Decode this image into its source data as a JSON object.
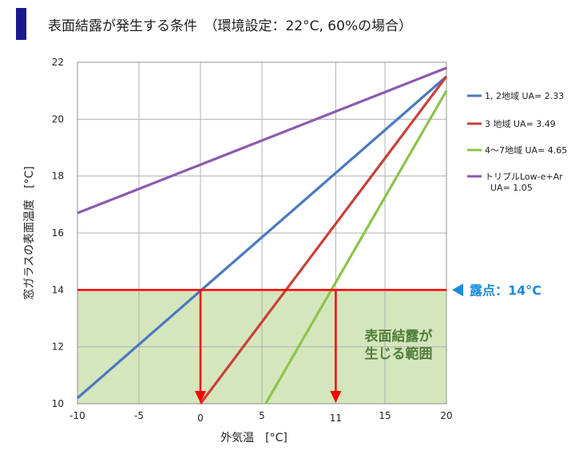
{
  "title": "表面結露が発生する条件　（環境設定：22°C, 60%の場合）",
  "chart_data": {
    "type": "line",
    "xlabel": "外気温　[°C]",
    "ylabel": "窓ガラスの表面温度　[°C]",
    "xlim": [
      -10,
      20
    ],
    "ylim": [
      10,
      22
    ],
    "x_ticks": [
      "-10",
      "-5",
      "0",
      "5",
      "11",
      "15",
      "20"
    ],
    "x_tick_values": [
      -10,
      -5,
      0,
      5,
      11,
      15,
      20
    ],
    "highlight_ticks": [
      "0",
      "11"
    ],
    "y_ticks": [
      "10",
      "12",
      "14",
      "16",
      "18",
      "20",
      "22"
    ],
    "y_tick_values": [
      10,
      12,
      14,
      16,
      18,
      20,
      22
    ],
    "grid": true,
    "legend_position": "right",
    "series": [
      {
        "name": "1, 2地域 UA= 2.33",
        "color": "#4a78c0",
        "x": [
          -10,
          20
        ],
        "y": [
          10.2,
          21.5
        ]
      },
      {
        "name": "3 地域 UA= 3.49",
        "color": "#c8403a",
        "x": [
          0,
          20
        ],
        "y": [
          10,
          21.5
        ]
      },
      {
        "name": "4〜7地域 UA= 4.65",
        "color": "#8cc44a",
        "x": [
          5.3,
          20
        ],
        "y": [
          10,
          21.0
        ]
      },
      {
        "name_line1": "トリプルLow-e+Ar",
        "name_line2": "UA= 1.05",
        "color": "#8a5ab0",
        "x": [
          -10,
          20
        ],
        "y": [
          16.7,
          21.8
        ]
      }
    ],
    "dew_point": {
      "value": 14,
      "label": "露点：14°C",
      "line_color": "#ff0000",
      "label_color": "#1a8ce0"
    },
    "region": {
      "label_line1": "表面結露が",
      "label_line2": "生じる範囲",
      "fill_color": "#d5e6bd",
      "text_color": "#4f7f3a"
    },
    "arrows": [
      {
        "x": 0
      },
      {
        "x": 11
      }
    ]
  }
}
